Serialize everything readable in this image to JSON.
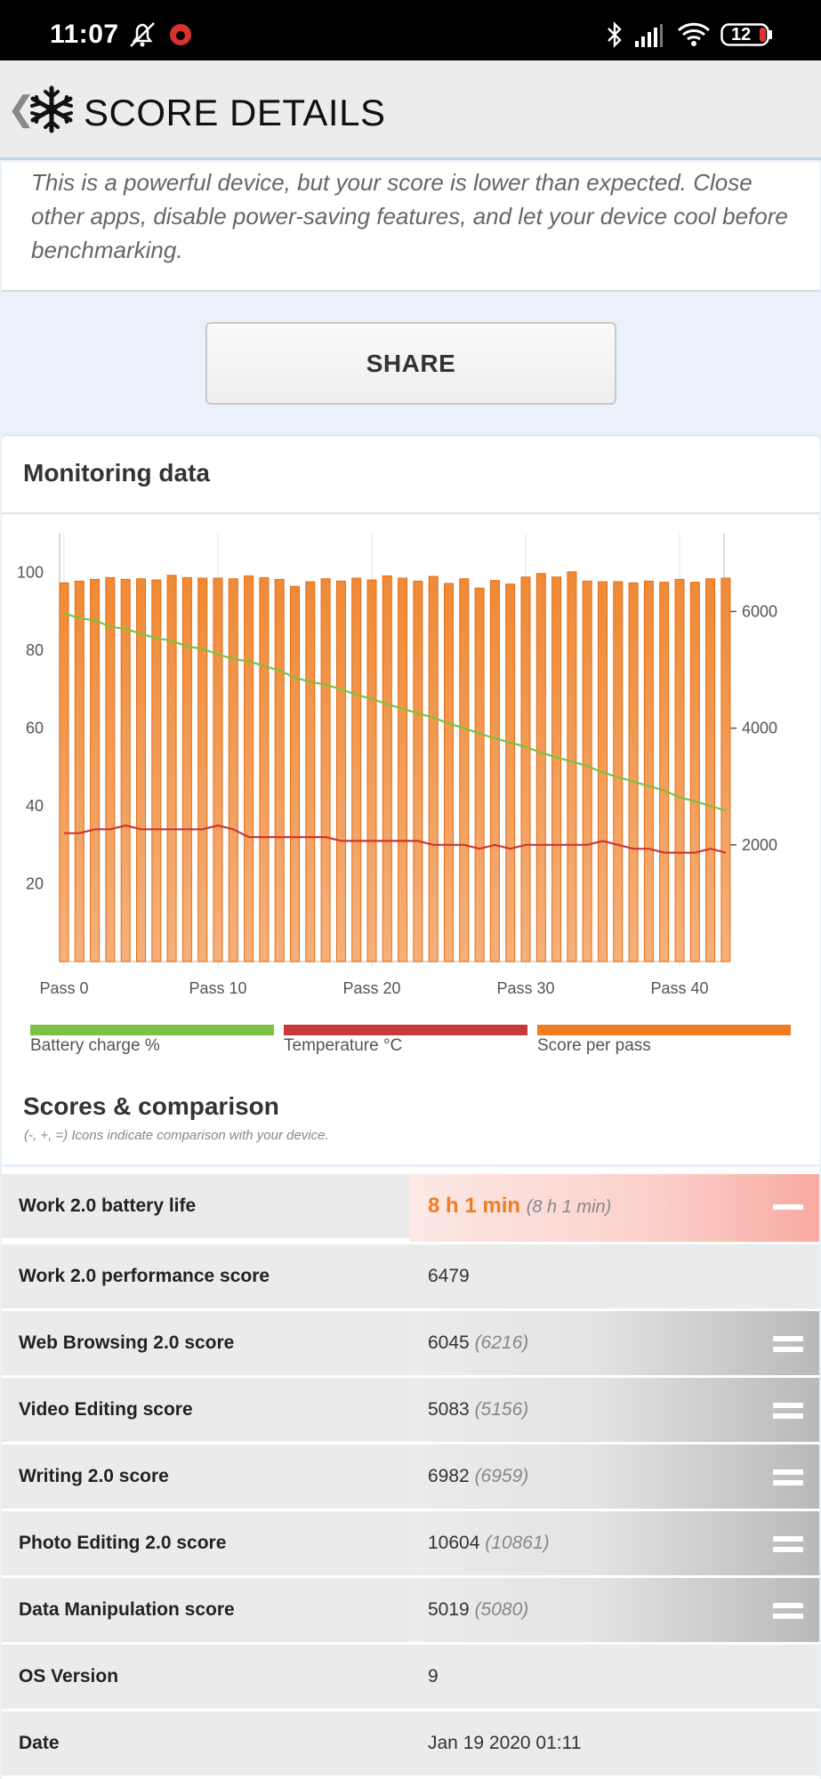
{
  "status_bar": {
    "time": "11:07",
    "battery": "12"
  },
  "app_bar": {
    "back": "❮",
    "title": "SCORE DETAILS"
  },
  "notice": {
    "text": "This is a powerful device, but your score is lower than expected. Close other apps, disable power-saving features, and let your device cool before benchmarking."
  },
  "share": {
    "label": "SHARE"
  },
  "monitoring": {
    "title": "Monitoring data"
  },
  "legend": [
    {
      "label": "Battery charge %",
      "color": "#7cc242"
    },
    {
      "label": "Temperature °C",
      "color": "#c8393b"
    },
    {
      "label": "Score per pass",
      "color": "#ee7d24"
    }
  ],
  "chart_data": {
    "type": "bar",
    "x_tick_labels": [
      "Pass 0",
      "Pass 10",
      "Pass 20",
      "Pass 30",
      "Pass 40"
    ],
    "x_ticks": [
      0,
      10,
      20,
      30,
      40
    ],
    "left_axis": {
      "ticks": [
        20,
        40,
        60,
        80,
        100
      ],
      "range": [
        0,
        110
      ]
    },
    "right_axis": {
      "ticks": [
        2000,
        4000,
        6000
      ],
      "range": [
        0,
        7333
      ]
    },
    "series": [
      {
        "name": "Score per pass",
        "axis": "right",
        "type": "bar",
        "color": "#ee7d24",
        "values": [
          6490,
          6520,
          6550,
          6580,
          6550,
          6560,
          6540,
          6620,
          6580,
          6570,
          6570,
          6560,
          6610,
          6580,
          6550,
          6430,
          6510,
          6560,
          6520,
          6570,
          6540,
          6610,
          6570,
          6520,
          6600,
          6480,
          6560,
          6400,
          6530,
          6470,
          6590,
          6650,
          6590,
          6680,
          6520,
          6510,
          6510,
          6490,
          6520,
          6500,
          6550,
          6500,
          6560,
          6570
        ]
      },
      {
        "name": "Battery charge %",
        "axis": "left",
        "type": "line",
        "color": "#7cc242",
        "values": [
          89.5,
          88.3,
          87.7,
          86.1,
          85.5,
          84.3,
          83.1,
          82.5,
          81.0,
          80.4,
          79.0,
          77.8,
          77.2,
          76.0,
          74.8,
          73.0,
          71.9,
          71.2,
          70.0,
          68.6,
          67.5,
          66.2,
          65.0,
          63.8,
          62.7,
          61.2,
          60.0,
          58.6,
          57.4,
          56.3,
          55.2,
          53.7,
          52.5,
          51.4,
          50.3,
          48.6,
          47.4,
          46.3,
          45.1,
          44.0,
          42.2,
          41.2,
          40.0,
          38.8
        ]
      },
      {
        "name": "Temperature °C",
        "axis": "left",
        "type": "line",
        "color": "#c8393b",
        "values": [
          33,
          33,
          34,
          34,
          35,
          34,
          34,
          34,
          34,
          34,
          35,
          34,
          32,
          32,
          32,
          32,
          32,
          32,
          31,
          31,
          31,
          31,
          31,
          31,
          30,
          30,
          30,
          29,
          30,
          29,
          30,
          30,
          30,
          30,
          30,
          31,
          30,
          29,
          29,
          28,
          28,
          28,
          29,
          28
        ]
      }
    ]
  },
  "scores": {
    "title": "Scores & comparison",
    "note": "(-, +, =) Icons indicate comparison with your device.",
    "rows": [
      {
        "label": "Work 2.0 battery life",
        "value": "8 h 1 min",
        "ref": "(8 h 1 min)",
        "icon": "minus-icon"
      },
      {
        "label": "Work 2.0 performance score",
        "value": "6479",
        "ref": "",
        "icon": ""
      },
      {
        "label": "Web Browsing 2.0 score",
        "value": "6045",
        "ref": "(6216)",
        "icon": "equals-icon"
      },
      {
        "label": "Video Editing score",
        "value": "5083",
        "ref": "(5156)",
        "icon": "equals-icon"
      },
      {
        "label": "Writing 2.0 score",
        "value": "6982",
        "ref": "(6959)",
        "icon": "equals-icon"
      },
      {
        "label": "Photo Editing 2.0 score",
        "value": "10604",
        "ref": "(10861)",
        "icon": "equals-icon"
      },
      {
        "label": "Data Manipulation score",
        "value": "5019",
        "ref": "(5080)",
        "icon": "equals-icon"
      },
      {
        "label": "OS Version",
        "value": "9",
        "ref": "",
        "icon": ""
      },
      {
        "label": "Date",
        "value": "Jan 19 2020 01:11",
        "ref": "",
        "icon": ""
      }
    ]
  }
}
